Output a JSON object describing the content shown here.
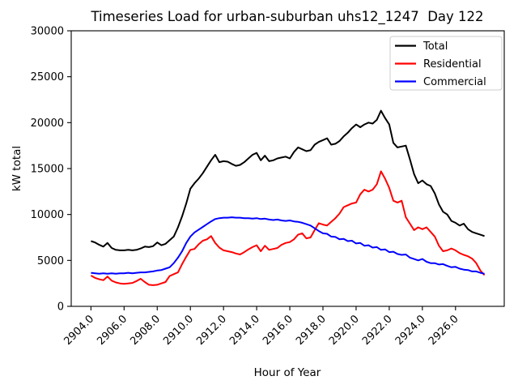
{
  "chart_data": {
    "type": "line",
    "title": "Timeseries Load for urban-suburban uhs12_1247  Day 122",
    "xlabel": "Hour of Year",
    "ylabel": "kW total",
    "grid": false,
    "legend_position": "upper right",
    "xlim": [
      2902.81,
      2928.94
    ],
    "ylim": [
      0,
      30000
    ],
    "xticks": [
      2904,
      2906,
      2908,
      2910,
      2912,
      2914,
      2916,
      2918,
      2920,
      2922,
      2924,
      2926
    ],
    "xtick_labels": [
      "2904.0",
      "2906.0",
      "2908.0",
      "2910.0",
      "2912.0",
      "2914.0",
      "2916.0",
      "2918.0",
      "2920.0",
      "2922.0",
      "2924.0",
      "2926.0"
    ],
    "yticks": [
      0,
      5000,
      10000,
      15000,
      20000,
      25000,
      30000
    ],
    "ytick_labels": [
      "0",
      "5000",
      "10000",
      "15000",
      "20000",
      "25000",
      "30000"
    ],
    "x_start": 2904.0,
    "x_step": 0.25,
    "series": [
      {
        "name": "Total",
        "color": "#000000",
        "values": [
          7100,
          6950,
          6700,
          6500,
          6900,
          6350,
          6150,
          6100,
          6100,
          6150,
          6100,
          6150,
          6300,
          6500,
          6450,
          6550,
          6950,
          6650,
          6800,
          7200,
          7600,
          8600,
          9800,
          11200,
          12800,
          13400,
          13900,
          14500,
          15200,
          15900,
          16500,
          15700,
          15800,
          15750,
          15500,
          15300,
          15400,
          15700,
          16100,
          16500,
          16700,
          15900,
          16400,
          15800,
          15900,
          16100,
          16200,
          16300,
          16100,
          16800,
          17300,
          17100,
          16900,
          17000,
          17600,
          17900,
          18100,
          18300,
          17600,
          17700,
          18000,
          18500,
          18900,
          19400,
          19800,
          19500,
          19800,
          20000,
          19900,
          20300,
          21300,
          20500,
          19800,
          17800,
          17300,
          17400,
          17500,
          16000,
          14400,
          13400,
          13700,
          13300,
          13100,
          12300,
          11100,
          10300,
          10000,
          9300,
          9100,
          8800,
          9000,
          8400,
          8100,
          7950,
          7800,
          7650
        ]
      },
      {
        "name": "Residential",
        "color": "#ff0000",
        "values": [
          3350,
          3100,
          2950,
          2850,
          3250,
          2800,
          2600,
          2500,
          2450,
          2500,
          2550,
          2750,
          3000,
          2650,
          2350,
          2300,
          2350,
          2500,
          2650,
          3300,
          3500,
          3700,
          4600,
          5400,
          6150,
          6250,
          6750,
          7150,
          7300,
          7650,
          6900,
          6400,
          6100,
          6000,
          5900,
          5750,
          5650,
          5900,
          6200,
          6450,
          6650,
          6000,
          6600,
          6150,
          6250,
          6350,
          6700,
          6900,
          7000,
          7300,
          7800,
          7950,
          7400,
          7500,
          8300,
          9050,
          8900,
          8800,
          9200,
          9600,
          10100,
          10800,
          11000,
          11200,
          11300,
          12200,
          12700,
          12500,
          12700,
          13300,
          14700,
          13900,
          12900,
          11500,
          11300,
          11500,
          9700,
          9000,
          8300,
          8600,
          8400,
          8600,
          8100,
          7600,
          6600,
          6000,
          6100,
          6300,
          6100,
          5800,
          5600,
          5450,
          5200,
          4700,
          3900,
          3400
        ]
      },
      {
        "name": "Commercial",
        "color": "#0000ff",
        "values": [
          3650,
          3600,
          3550,
          3600,
          3550,
          3600,
          3550,
          3600,
          3600,
          3650,
          3600,
          3650,
          3700,
          3700,
          3750,
          3800,
          3900,
          3950,
          4100,
          4250,
          4700,
          5300,
          6000,
          6900,
          7600,
          8050,
          8350,
          8650,
          8950,
          9250,
          9500,
          9600,
          9650,
          9650,
          9700,
          9650,
          9650,
          9600,
          9600,
          9550,
          9600,
          9500,
          9550,
          9450,
          9400,
          9450,
          9350,
          9300,
          9350,
          9250,
          9200,
          9100,
          8950,
          8800,
          8500,
          8200,
          7950,
          7900,
          7600,
          7550,
          7300,
          7350,
          7100,
          7150,
          6850,
          6900,
          6600,
          6650,
          6400,
          6450,
          6150,
          6200,
          5900,
          5950,
          5700,
          5600,
          5650,
          5300,
          5150,
          5000,
          5150,
          4850,
          4700,
          4700,
          4550,
          4600,
          4400,
          4250,
          4300,
          4100,
          4000,
          3950,
          3800,
          3800,
          3650,
          3550
        ]
      }
    ]
  }
}
